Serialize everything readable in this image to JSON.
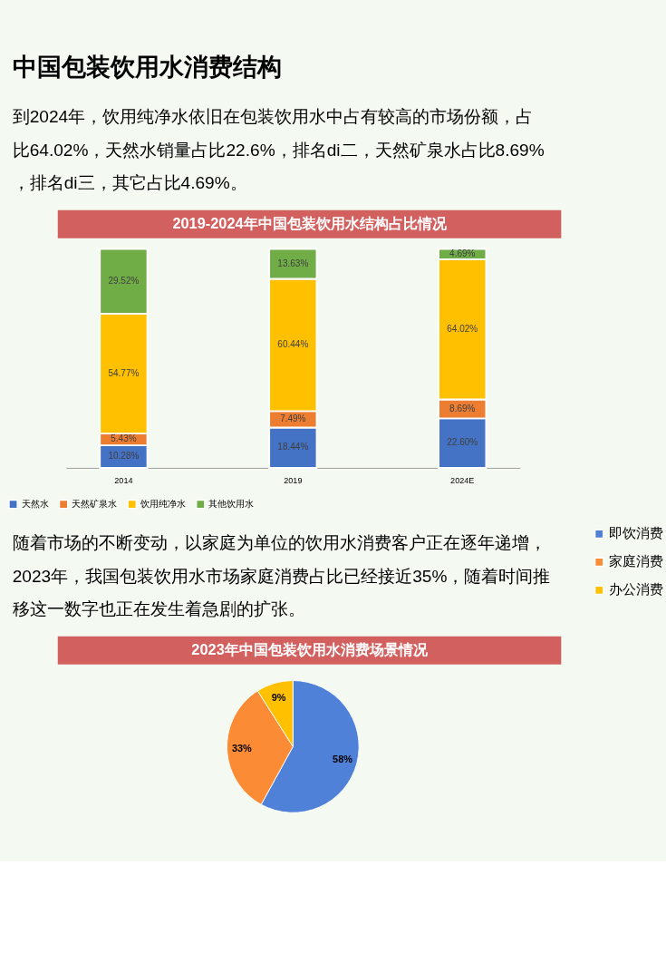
{
  "chart_data": [
    {
      "type": "bar",
      "stacked": true,
      "title": "中国包装饮用水消费结构",
      "subtitle": "2019-2024年中国包装饮用水结构占比情况",
      "annotations": [
        "到2024年，饮用纯净水依旧在包装饮用水中占有较高的市场份额，占比64.02%，天然水销量占比22.6%，排名di二，天然矿泉水占比8.69%，排名di三，其它占比4.69%。"
      ],
      "categories": [
        "2014",
        "2019",
        "2024E"
      ],
      "legend": "bottom",
      "series": [
        {
          "name": "天然水",
          "color": "#4472c4",
          "values": [
            10.28,
            18.44,
            22.6
          ],
          "value_labels": [
            "10.28%",
            "18.44%",
            "22.60%"
          ]
        },
        {
          "name": "天然矿泉水",
          "color": "#ed7d31",
          "values": [
            5.43,
            7.49,
            8.69
          ],
          "value_labels": [
            "5.43%",
            "7.49%",
            "8.69%"
          ]
        },
        {
          "name": "饮用纯净水",
          "color": "#ffc000",
          "values": [
            54.77,
            60.44,
            64.02
          ],
          "value_labels": [
            "54.77%",
            "60.44%",
            "64.02%"
          ]
        },
        {
          "name": "其他饮用水",
          "color": "#70ad47",
          "values": [
            29.52,
            13.63,
            4.69
          ],
          "value_labels": [
            "29.52%",
            "13.63%",
            "4.69%"
          ]
        }
      ]
    },
    {
      "type": "pie",
      "title": "2023年中国包装饮用水消费场景情况",
      "annotations": [
        "随着市场的不断变动，以家庭为单位的饮用水消费客户正在逐年递增，2023年，我国包装饮用水市场家庭消费占比已经接近35%，随着时间推移这一数字也正在发生着急剧的扩张。"
      ],
      "categories": [
        "即饮消费",
        "家庭消费",
        "办公消费"
      ],
      "values": [
        58,
        33,
        9
      ],
      "colors": [
        "#4f81d9",
        "#fb8b35",
        "#ffc000"
      ],
      "value_labels": [
        "58%",
        "33%",
        "9%"
      ],
      "legend": "right"
    }
  ]
}
